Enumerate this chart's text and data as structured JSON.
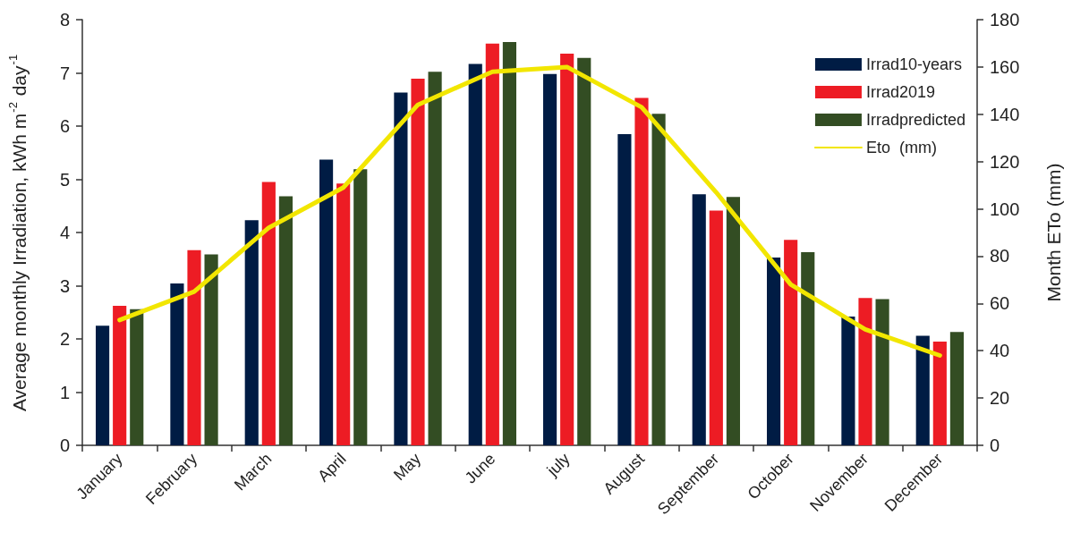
{
  "chart_data": {
    "type": "bar",
    "categories": [
      "January",
      "February",
      "March",
      "April",
      "May",
      "June",
      "july",
      "August",
      "September",
      "October",
      "November",
      "December"
    ],
    "ylabel": "Average monthly Irradiation, kWh m$^{-2}$ day$^{-1}$",
    "y2label": "Month ETo (mm)",
    "ylim": [
      0,
      8
    ],
    "yticks": [
      0,
      1,
      2,
      3,
      4,
      5,
      6,
      7,
      8
    ],
    "y2lim": [
      0,
      180
    ],
    "y2ticks": [
      0,
      20,
      40,
      60,
      80,
      100,
      120,
      140,
      160,
      180
    ],
    "series": [
      {
        "name": "Irrad10-years",
        "color": "#001c44",
        "values": [
          2.25,
          3.04,
          4.23,
          5.37,
          6.63,
          7.17,
          6.98,
          5.85,
          4.72,
          3.53,
          2.42,
          2.06
        ]
      },
      {
        "name": "Irrad2019",
        "color": "#ed1c24",
        "values": [
          2.62,
          3.67,
          4.95,
          4.92,
          6.89,
          7.55,
          7.36,
          6.53,
          4.41,
          3.86,
          2.77,
          1.95
        ]
      },
      {
        "name": "Irradpredicted",
        "color": "#334d23",
        "values": [
          2.56,
          3.59,
          4.68,
          5.19,
          7.02,
          7.58,
          7.28,
          6.23,
          4.67,
          3.63,
          2.75,
          2.13
        ]
      },
      {
        "name": "Eto  (mm)",
        "type": "line",
        "axis": "y2",
        "color": "#f2e600",
        "values": [
          53,
          65,
          92,
          109,
          144,
          158,
          160,
          143,
          107,
          68,
          49,
          38
        ]
      }
    ],
    "legend": "top right",
    "grid": false,
    "marker": "none",
    "line_style": "solid"
  }
}
